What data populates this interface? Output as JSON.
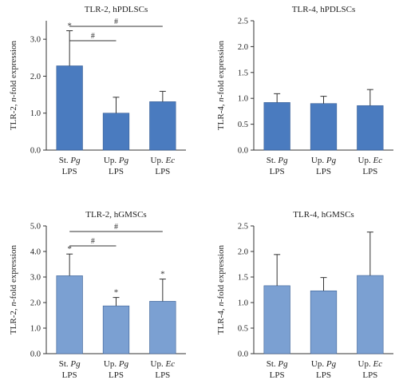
{
  "chart_data": [
    {
      "type": "bar",
      "title": "TLR-2, hPDLSCs",
      "ylabel_prefix": "TLR-2, ",
      "ylabel_italic": "n",
      "ylabel_suffix": "-fold expression",
      "ylim": [
        0,
        3.5
      ],
      "yticks": [
        "0.0",
        "1.0",
        "2.0",
        "3.0"
      ],
      "tick_values": [
        0,
        1,
        2,
        3
      ],
      "categories": [
        {
          "line1": "St. ",
          "line1_italic": "Pg",
          "line2": "LPS"
        },
        {
          "line1": "Up. ",
          "line1_italic": "Pg",
          "line2": "LPS"
        },
        {
          "line1": "Up. ",
          "line1_italic": "Ec",
          "line2": "LPS"
        }
      ],
      "values": [
        2.28,
        1.0,
        1.31
      ],
      "errors": [
        0.95,
        0.43,
        0.28
      ],
      "stars": [
        "*",
        "",
        ""
      ],
      "brackets": [
        {
          "from": 0,
          "to": 1,
          "label": "#"
        },
        {
          "from": 0,
          "to": 2,
          "label": "#"
        }
      ],
      "bar_color": "#4a7bbf",
      "grid": false
    },
    {
      "type": "bar",
      "title": "TLR-4, hPDLSCs",
      "ylabel_prefix": "TLR-4, ",
      "ylabel_italic": "n",
      "ylabel_suffix": "-fold expression",
      "ylim": [
        0,
        2.5
      ],
      "yticks": [
        "0.0",
        "0.5",
        "1.0",
        "1.5",
        "2.0",
        "2.5"
      ],
      "tick_values": [
        0,
        0.5,
        1,
        1.5,
        2,
        2.5
      ],
      "categories": [
        {
          "line1": "St. ",
          "line1_italic": "Pg",
          "line2": "LPS"
        },
        {
          "line1": "Up. ",
          "line1_italic": "Pg",
          "line2": "LPS"
        },
        {
          "line1": "Up. ",
          "line1_italic": "Ec",
          "line2": "LPS"
        }
      ],
      "values": [
        0.92,
        0.9,
        0.86
      ],
      "errors": [
        0.17,
        0.14,
        0.31
      ],
      "stars": [
        "",
        "",
        ""
      ],
      "brackets": [],
      "bar_color": "#4a7bbf",
      "grid": false
    },
    {
      "type": "bar",
      "title": "TLR-2, hGMSCs",
      "ylabel_prefix": "TLR-2, ",
      "ylabel_italic": "n",
      "ylabel_suffix": "-fold expression",
      "ylim": [
        0,
        5.0
      ],
      "yticks": [
        "0.0",
        "1.0",
        "2.0",
        "3.0",
        "4.0",
        "5.0"
      ],
      "tick_values": [
        0,
        1,
        2,
        3,
        4,
        5
      ],
      "categories": [
        {
          "line1": "St. ",
          "line1_italic": "Pg",
          "line2": "LPS"
        },
        {
          "line1": "Up. ",
          "line1_italic": "Pg",
          "line2": "LPS"
        },
        {
          "line1": "Up. ",
          "line1_italic": "Ec",
          "line2": "LPS"
        }
      ],
      "values": [
        3.05,
        1.87,
        2.05
      ],
      "errors": [
        0.85,
        0.33,
        0.87
      ],
      "stars": [
        "*",
        "*",
        "*"
      ],
      "brackets": [
        {
          "from": 0,
          "to": 1,
          "label": "#"
        },
        {
          "from": 0,
          "to": 2,
          "label": "#"
        }
      ],
      "bar_color": "#7ba0d2",
      "grid": false
    },
    {
      "type": "bar",
      "title": "TLR-4, hGMSCs",
      "ylabel_prefix": "TLR-4, ",
      "ylabel_italic": "n",
      "ylabel_suffix": "-fold expression",
      "ylim": [
        0,
        2.5
      ],
      "yticks": [
        "0.0",
        "0.5",
        "1.0",
        "1.5",
        "2.0",
        "2.5"
      ],
      "tick_values": [
        0,
        0.5,
        1,
        1.5,
        2,
        2.5
      ],
      "categories": [
        {
          "line1": "St. ",
          "line1_italic": "Pg",
          "line2": "LPS"
        },
        {
          "line1": "Up. ",
          "line1_italic": "Pg",
          "line2": "LPS"
        },
        {
          "line1": "Up. ",
          "line1_italic": "Ec",
          "line2": "LPS"
        }
      ],
      "values": [
        1.33,
        1.23,
        1.53
      ],
      "errors": [
        0.61,
        0.26,
        0.85
      ],
      "stars": [
        "",
        "",
        ""
      ],
      "brackets": [],
      "bar_color": "#7ba0d2",
      "grid": false
    }
  ]
}
